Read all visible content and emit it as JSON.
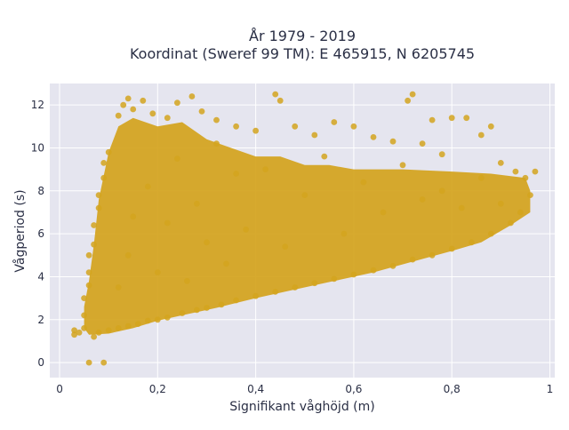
{
  "chart_data": {
    "type": "scatter",
    "title_line1": "År 1979 - 2019",
    "title_line2": "Koordinat (Sweref 99 TM): E 465915, N 6205745",
    "xlabel": "Signifikant våghöjd (m)",
    "ylabel": "Vågperiod (s)",
    "xlim": [
      -0.02,
      1.01
    ],
    "ylim": [
      -0.7,
      13.0
    ],
    "xticks": [
      0,
      0.2,
      0.4,
      0.6,
      0.8,
      1.0
    ],
    "xtick_labels": [
      "0",
      "0,2",
      "0,4",
      "0,6",
      "0,8",
      "1"
    ],
    "yticks": [
      0,
      2,
      4,
      6,
      8,
      10,
      12
    ],
    "ytick_labels": [
      "0",
      "2",
      "4",
      "6",
      "8",
      "10",
      "12"
    ],
    "grid": true,
    "legend": "none",
    "marker_color": "#d4a41e",
    "plot_background": "#e5e5ef",
    "series": [
      {
        "points": [
          [
            0.03,
            1.3
          ],
          [
            0.03,
            1.5
          ],
          [
            0.04,
            1.4
          ],
          [
            0.05,
            1.6
          ],
          [
            0.05,
            2.2
          ],
          [
            0.05,
            3.0
          ],
          [
            0.06,
            3.6
          ],
          [
            0.06,
            4.2
          ],
          [
            0.06,
            5.0
          ],
          [
            0.07,
            5.5
          ],
          [
            0.07,
            6.4
          ],
          [
            0.08,
            7.2
          ],
          [
            0.08,
            7.8
          ],
          [
            0.09,
            8.6
          ],
          [
            0.09,
            9.3
          ],
          [
            0.1,
            9.8
          ],
          [
            0.06,
            0.0
          ],
          [
            0.09,
            0.0
          ],
          [
            0.07,
            1.2
          ],
          [
            0.08,
            1.4
          ],
          [
            0.1,
            1.5
          ],
          [
            0.12,
            1.6
          ],
          [
            0.14,
            1.7
          ],
          [
            0.16,
            1.8
          ],
          [
            0.18,
            1.95
          ],
          [
            0.2,
            2.0
          ],
          [
            0.22,
            2.1
          ],
          [
            0.25,
            2.3
          ],
          [
            0.28,
            2.45
          ],
          [
            0.3,
            2.55
          ],
          [
            0.33,
            2.7
          ],
          [
            0.36,
            2.9
          ],
          [
            0.4,
            3.1
          ],
          [
            0.44,
            3.3
          ],
          [
            0.48,
            3.5
          ],
          [
            0.52,
            3.7
          ],
          [
            0.56,
            3.9
          ],
          [
            0.6,
            4.1
          ],
          [
            0.64,
            4.3
          ],
          [
            0.68,
            4.5
          ],
          [
            0.72,
            4.8
          ],
          [
            0.76,
            5.0
          ],
          [
            0.8,
            5.3
          ],
          [
            0.84,
            5.6
          ],
          [
            0.88,
            6.0
          ],
          [
            0.92,
            6.5
          ],
          [
            0.94,
            7.0
          ],
          [
            0.96,
            7.8
          ],
          [
            0.12,
            11.5
          ],
          [
            0.13,
            12.0
          ],
          [
            0.14,
            12.3
          ],
          [
            0.15,
            11.8
          ],
          [
            0.17,
            12.2
          ],
          [
            0.19,
            11.6
          ],
          [
            0.22,
            11.4
          ],
          [
            0.24,
            12.1
          ],
          [
            0.27,
            12.4
          ],
          [
            0.29,
            11.7
          ],
          [
            0.32,
            11.3
          ],
          [
            0.36,
            11.0
          ],
          [
            0.4,
            10.8
          ],
          [
            0.44,
            12.5
          ],
          [
            0.45,
            12.2
          ],
          [
            0.48,
            11.0
          ],
          [
            0.52,
            10.6
          ],
          [
            0.56,
            11.2
          ],
          [
            0.6,
            11.0
          ],
          [
            0.64,
            10.5
          ],
          [
            0.68,
            10.3
          ],
          [
            0.72,
            12.5
          ],
          [
            0.71,
            12.2
          ],
          [
            0.74,
            10.2
          ],
          [
            0.76,
            11.3
          ],
          [
            0.78,
            9.7
          ],
          [
            0.8,
            11.4
          ],
          [
            0.83,
            11.4
          ],
          [
            0.86,
            10.6
          ],
          [
            0.88,
            11.0
          ],
          [
            0.9,
            9.3
          ],
          [
            0.93,
            8.9
          ],
          [
            0.95,
            8.6
          ],
          [
            0.97,
            8.9
          ],
          [
            0.12,
            3.5
          ],
          [
            0.14,
            5.0
          ],
          [
            0.15,
            6.8
          ],
          [
            0.18,
            8.2
          ],
          [
            0.2,
            4.2
          ],
          [
            0.22,
            6.5
          ],
          [
            0.24,
            9.5
          ],
          [
            0.26,
            3.8
          ],
          [
            0.28,
            7.4
          ],
          [
            0.3,
            5.6
          ],
          [
            0.32,
            10.2
          ],
          [
            0.34,
            4.6
          ],
          [
            0.36,
            8.8
          ],
          [
            0.38,
            6.2
          ],
          [
            0.42,
            9.0
          ],
          [
            0.46,
            5.4
          ],
          [
            0.5,
            7.8
          ],
          [
            0.54,
            9.6
          ],
          [
            0.58,
            6.0
          ],
          [
            0.62,
            8.4
          ],
          [
            0.66,
            7.0
          ],
          [
            0.7,
            9.2
          ],
          [
            0.74,
            7.6
          ],
          [
            0.78,
            8.0
          ],
          [
            0.82,
            7.2
          ],
          [
            0.86,
            8.6
          ],
          [
            0.9,
            7.4
          ]
        ]
      }
    ]
  }
}
